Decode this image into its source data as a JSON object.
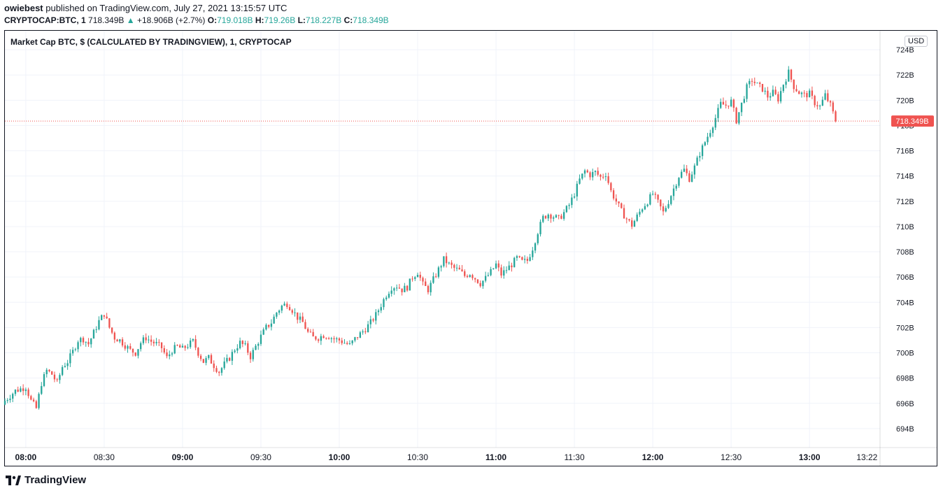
{
  "publish_line": {
    "user": "owiebest",
    "text": " published on TradingView.com, July 27, 2021 13:15:57 UTC"
  },
  "symbol_line": {
    "symbol": "CRYPTOCAP:BTC, 1",
    "last": "718.349B",
    "arrow": "▲",
    "change": "+18.906B (+2.7%)",
    "o_label": "O:",
    "o": "719.018B",
    "h_label": "H:",
    "h": "719.26B",
    "l_label": "L:",
    "l": "718.227B",
    "c_label": "C:",
    "c": "718.349B"
  },
  "chart_title": "Market Cap BTC, $ (CALCULATED BY TRADINGVIEW), 1, CRYPTOCAP",
  "currency_badge": "USD",
  "price_tag": "718.349B",
  "brand": "TradingView",
  "colors": {
    "up": "#26a69a",
    "down": "#ef5350",
    "grid": "#f0f3fa",
    "text": "#131722",
    "price_line": "#ef5350"
  },
  "chart_data": {
    "type": "candlestick",
    "title": "Market Cap BTC, $ (CALCULATED BY TRADINGVIEW), 1, CRYPTOCAP",
    "ylim": [
      692.5,
      725.5
    ],
    "y_ticks": [
      694,
      696,
      698,
      700,
      702,
      704,
      706,
      708,
      710,
      712,
      714,
      716,
      718,
      720,
      722,
      724
    ],
    "y_tick_labels": [
      "694B",
      "696B",
      "698B",
      "700B",
      "702B",
      "704B",
      "706B",
      "708B",
      "710B",
      "712B",
      "714B",
      "716B",
      "718B",
      "720B",
      "722B",
      "724B"
    ],
    "x_ticks": [
      {
        "label": "08:00",
        "minute": 0,
        "bold": true
      },
      {
        "label": "08:30",
        "minute": 30,
        "bold": false
      },
      {
        "label": "09:00",
        "minute": 60,
        "bold": true
      },
      {
        "label": "09:30",
        "minute": 90,
        "bold": false
      },
      {
        "label": "10:00",
        "minute": 120,
        "bold": true
      },
      {
        "label": "10:30",
        "minute": 150,
        "bold": false
      },
      {
        "label": "11:00",
        "minute": 180,
        "bold": true
      },
      {
        "label": "11:30",
        "minute": 210,
        "bold": false
      },
      {
        "label": "12:00",
        "minute": 240,
        "bold": true
      },
      {
        "label": "12:30",
        "minute": 270,
        "bold": false
      },
      {
        "label": "13:00",
        "minute": 300,
        "bold": true
      },
      {
        "label": "13:22",
        "minute": 322,
        "bold": false
      }
    ],
    "x_range_minutes": [
      -8,
      327
    ],
    "last_close": 718.349,
    "series": [
      {
        "name": "close",
        "values": [
          [
            -8,
            696.2
          ],
          [
            -4,
            697.0
          ],
          [
            0,
            697.3
          ],
          [
            2,
            696.2
          ],
          [
            4,
            695.6
          ],
          [
            6,
            697.6
          ],
          [
            8,
            698.6
          ],
          [
            10,
            698.3
          ],
          [
            12,
            697.6
          ],
          [
            14,
            698.9
          ],
          [
            16,
            699.3
          ],
          [
            18,
            700.1
          ],
          [
            20,
            701.0
          ],
          [
            22,
            701.1
          ],
          [
            24,
            700.7
          ],
          [
            26,
            701.6
          ],
          [
            28,
            702.5
          ],
          [
            30,
            703.1
          ],
          [
            32,
            702.0
          ],
          [
            34,
            701.2
          ],
          [
            36,
            701.0
          ],
          [
            38,
            700.6
          ],
          [
            40,
            700.2
          ],
          [
            42,
            700.0
          ],
          [
            44,
            700.8
          ],
          [
            46,
            701.2
          ],
          [
            48,
            700.9
          ],
          [
            50,
            700.7
          ],
          [
            52,
            700.4
          ],
          [
            54,
            699.6
          ],
          [
            56,
            700.2
          ],
          [
            58,
            700.5
          ],
          [
            60,
            700.3
          ],
          [
            62,
            700.6
          ],
          [
            64,
            700.9
          ],
          [
            66,
            700.0
          ],
          [
            68,
            699.3
          ],
          [
            70,
            699.6
          ],
          [
            72,
            699.0
          ],
          [
            74,
            698.5
          ],
          [
            76,
            699.1
          ],
          [
            78,
            699.6
          ],
          [
            80,
            700.3
          ],
          [
            82,
            700.8
          ],
          [
            84,
            700.5
          ],
          [
            86,
            699.7
          ],
          [
            88,
            700.5
          ],
          [
            90,
            701.3
          ],
          [
            92,
            702.0
          ],
          [
            94,
            702.4
          ],
          [
            96,
            703.2
          ],
          [
            98,
            703.7
          ],
          [
            100,
            703.9
          ],
          [
            102,
            703.4
          ],
          [
            104,
            702.8
          ],
          [
            106,
            702.4
          ],
          [
            108,
            701.6
          ],
          [
            110,
            701.2
          ],
          [
            112,
            701.2
          ],
          [
            114,
            701.4
          ],
          [
            116,
            701.3
          ],
          [
            118,
            701.1
          ],
          [
            120,
            701.0
          ],
          [
            122,
            700.8
          ],
          [
            124,
            700.6
          ],
          [
            126,
            701.1
          ],
          [
            128,
            701.5
          ],
          [
            130,
            701.9
          ],
          [
            132,
            702.4
          ],
          [
            134,
            703.0
          ],
          [
            136,
            703.8
          ],
          [
            138,
            704.6
          ],
          [
            140,
            705.2
          ],
          [
            142,
            705.3
          ],
          [
            144,
            705.0
          ],
          [
            146,
            705.2
          ],
          [
            148,
            706.0
          ],
          [
            150,
            706.4
          ],
          [
            152,
            705.4
          ],
          [
            154,
            705.0
          ],
          [
            156,
            705.8
          ],
          [
            158,
            706.6
          ],
          [
            160,
            707.4
          ],
          [
            162,
            707.0
          ],
          [
            164,
            706.7
          ],
          [
            166,
            706.5
          ],
          [
            168,
            706.1
          ],
          [
            170,
            706.3
          ],
          [
            172,
            705.9
          ],
          [
            174,
            705.5
          ],
          [
            176,
            705.9
          ],
          [
            178,
            706.4
          ],
          [
            180,
            707.0
          ],
          [
            182,
            706.2
          ],
          [
            184,
            706.6
          ],
          [
            186,
            707.0
          ],
          [
            188,
            707.5
          ],
          [
            190,
            707.2
          ],
          [
            192,
            707.3
          ],
          [
            194,
            708.3
          ],
          [
            196,
            709.6
          ],
          [
            198,
            710.7
          ],
          [
            200,
            711.0
          ],
          [
            202,
            710.8
          ],
          [
            204,
            710.6
          ],
          [
            206,
            711.1
          ],
          [
            208,
            711.7
          ],
          [
            210,
            712.6
          ],
          [
            212,
            713.7
          ],
          [
            214,
            714.4
          ],
          [
            216,
            714.1
          ],
          [
            218,
            714.3
          ],
          [
            220,
            713.9
          ],
          [
            222,
            714.2
          ],
          [
            224,
            712.8
          ],
          [
            226,
            712.0
          ],
          [
            228,
            711.2
          ],
          [
            230,
            710.6
          ],
          [
            232,
            710.1
          ],
          [
            234,
            710.8
          ],
          [
            236,
            711.5
          ],
          [
            238,
            712.0
          ],
          [
            240,
            712.6
          ],
          [
            242,
            711.9
          ],
          [
            244,
            711.1
          ],
          [
            246,
            712.0
          ],
          [
            248,
            713.0
          ],
          [
            250,
            714.0
          ],
          [
            252,
            714.5
          ],
          [
            254,
            713.8
          ],
          [
            256,
            714.7
          ],
          [
            258,
            715.8
          ],
          [
            260,
            716.7
          ],
          [
            262,
            717.6
          ],
          [
            264,
            718.6
          ],
          [
            266,
            719.7
          ],
          [
            268,
            719.6
          ],
          [
            270,
            719.9
          ],
          [
            272,
            718.4
          ],
          [
            274,
            719.7
          ],
          [
            276,
            721.0
          ],
          [
            278,
            721.6
          ],
          [
            280,
            721.2
          ],
          [
            282,
            720.9
          ],
          [
            284,
            720.3
          ],
          [
            286,
            720.6
          ],
          [
            288,
            720.1
          ],
          [
            290,
            721.3
          ],
          [
            292,
            722.2
          ],
          [
            294,
            721.1
          ],
          [
            296,
            720.6
          ],
          [
            298,
            720.4
          ],
          [
            300,
            720.5
          ],
          [
            302,
            719.8
          ],
          [
            304,
            719.5
          ],
          [
            306,
            720.4
          ],
          [
            308,
            719.6
          ],
          [
            310,
            718.349
          ]
        ]
      }
    ]
  }
}
